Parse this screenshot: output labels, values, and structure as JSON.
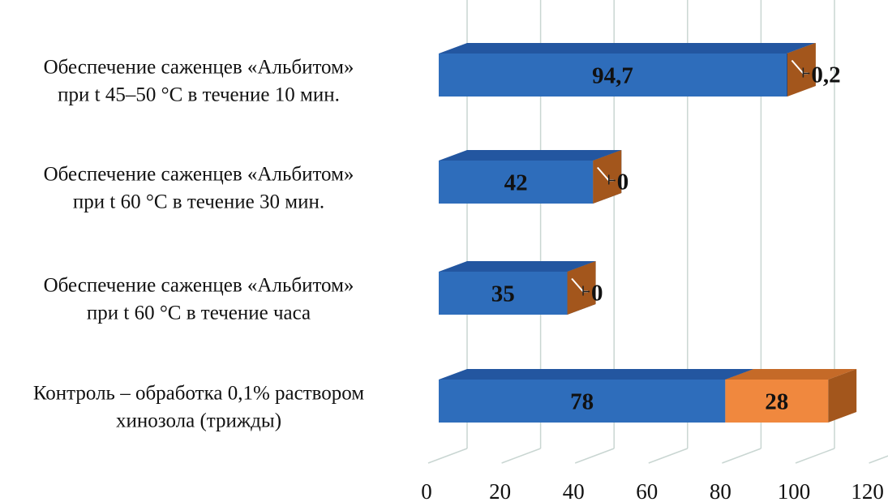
{
  "chart_data": {
    "type": "bar",
    "orientation": "horizontal",
    "stacked": true,
    "three_d": true,
    "categories": [
      [
        "Обеспечение саженцев «Альбитом»",
        "при t 45–50 °С в течение 10 мин."
      ],
      [
        "Обеспечение саженцев «Альбитом»",
        "при t 60 °С в течение 30 мин."
      ],
      [
        "Обеспечение саженцев «Альбитом»",
        "при t 60 °С в течение часа"
      ],
      [
        "Контроль – обработка 0,1% раствором",
        "хинозола (трижды)"
      ]
    ],
    "series": [
      {
        "values": [
          94.7,
          42,
          35,
          78
        ],
        "labels": [
          "94,7",
          "42",
          "35",
          "78"
        ],
        "color": "#2e6dbb",
        "top_color": "#2356a0",
        "side_color": "#1c4787"
      },
      {
        "values": [
          0.2,
          0,
          0,
          28
        ],
        "labels": [
          "0,2",
          "0",
          "0",
          "28"
        ],
        "color": "#f0883e",
        "top_color": "#c56a28",
        "side_color": "#a3561c"
      }
    ],
    "x_ticks": [
      "0",
      "20",
      "40",
      "60",
      "80",
      "100",
      "120"
    ],
    "xlim": [
      0,
      120
    ],
    "xlabel": "",
    "ylabel": "",
    "title": "",
    "legend": "none",
    "grid": true,
    "grid_color": "#c9d6d2"
  }
}
